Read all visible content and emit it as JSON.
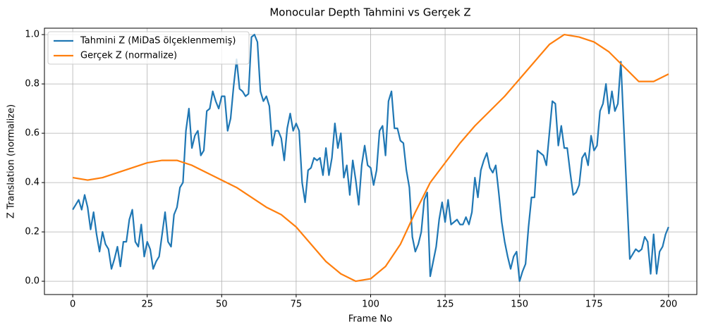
{
  "chart_data": {
    "type": "line",
    "title": "Monocular Depth Tahmini vs Gerçek Z",
    "xlabel": "Frame No",
    "ylabel": "Z Translation (normalize)",
    "xlim": [
      -9.5,
      209.5
    ],
    "ylim": [
      -0.054,
      1.026
    ],
    "xticks": [
      0,
      25,
      50,
      75,
      100,
      125,
      150,
      175,
      200
    ],
    "yticks": [
      {
        "value": 0,
        "label": "0.0"
      },
      {
        "value": 0.2,
        "label": "0.2"
      },
      {
        "value": 0.4,
        "label": "0.4"
      },
      {
        "value": 0.6,
        "label": "0.6"
      },
      {
        "value": 0.8,
        "label": "0.8"
      },
      {
        "value": 1,
        "label": "1.0"
      }
    ],
    "grid": true,
    "legend": "upper-left",
    "series": [
      {
        "name": "Tahmini Z (MiDaS ölçeklenmemiş)",
        "color": "#1f77b4",
        "x": [
          0,
          1,
          2,
          3,
          4,
          5,
          6,
          7,
          8,
          9,
          10,
          11,
          12,
          13,
          14,
          15,
          16,
          17,
          18,
          19,
          20,
          21,
          22,
          23,
          24,
          25,
          26,
          27,
          28,
          29,
          30,
          31,
          32,
          33,
          34,
          35,
          36,
          37,
          38,
          39,
          40,
          41,
          42,
          43,
          44,
          45,
          46,
          47,
          48,
          49,
          50,
          51,
          52,
          53,
          54,
          55,
          56,
          57,
          58,
          59,
          60,
          61,
          62,
          63,
          64,
          65,
          66,
          67,
          68,
          69,
          70,
          71,
          72,
          73,
          74,
          75,
          76,
          77,
          78,
          79,
          80,
          81,
          82,
          83,
          84,
          85,
          86,
          87,
          88,
          89,
          90,
          91,
          92,
          93,
          94,
          95,
          96,
          97,
          98,
          99,
          100,
          101,
          102,
          103,
          104,
          105,
          106,
          107,
          108,
          109,
          110,
          111,
          112,
          113,
          114,
          115,
          116,
          117,
          118,
          119,
          120,
          121,
          122,
          123,
          124,
          125,
          126,
          127,
          128,
          129,
          130,
          131,
          132,
          133,
          134,
          135,
          136,
          137,
          138,
          139,
          140,
          141,
          142,
          143,
          144,
          145,
          146,
          147,
          148,
          149,
          150,
          151,
          152,
          153,
          154,
          155,
          156,
          157,
          158,
          159,
          160,
          161,
          162,
          163,
          164,
          165,
          166,
          167,
          168,
          169,
          170,
          171,
          172,
          173,
          174,
          175,
          176,
          177,
          178,
          179,
          180,
          181,
          182,
          183,
          184,
          185,
          186,
          187,
          188,
          189,
          190,
          191,
          192,
          193,
          194,
          195,
          196,
          197,
          198,
          199,
          200
        ],
        "values": [
          0.29,
          0.31,
          0.33,
          0.29,
          0.35,
          0.3,
          0.21,
          0.28,
          0.19,
          0.12,
          0.2,
          0.15,
          0.13,
          0.05,
          0.09,
          0.14,
          0.06,
          0.16,
          0.16,
          0.25,
          0.29,
          0.16,
          0.14,
          0.23,
          0.1,
          0.16,
          0.13,
          0.05,
          0.08,
          0.1,
          0.19,
          0.28,
          0.16,
          0.14,
          0.27,
          0.3,
          0.38,
          0.4,
          0.61,
          0.7,
          0.54,
          0.59,
          0.61,
          0.51,
          0.53,
          0.69,
          0.7,
          0.77,
          0.73,
          0.7,
          0.75,
          0.75,
          0.61,
          0.66,
          0.79,
          0.9,
          0.78,
          0.77,
          0.75,
          0.76,
          0.99,
          1.0,
          0.97,
          0.77,
          0.73,
          0.75,
          0.71,
          0.55,
          0.61,
          0.61,
          0.58,
          0.49,
          0.62,
          0.68,
          0.61,
          0.64,
          0.61,
          0.4,
          0.32,
          0.45,
          0.46,
          0.5,
          0.49,
          0.5,
          0.43,
          0.54,
          0.43,
          0.5,
          0.64,
          0.54,
          0.6,
          0.42,
          0.47,
          0.35,
          0.49,
          0.41,
          0.31,
          0.47,
          0.55,
          0.47,
          0.46,
          0.39,
          0.45,
          0.61,
          0.63,
          0.51,
          0.73,
          0.77,
          0.62,
          0.62,
          0.57,
          0.56,
          0.45,
          0.38,
          0.18,
          0.12,
          0.15,
          0.2,
          0.33,
          0.36,
          0.02,
          0.08,
          0.14,
          0.25,
          0.32,
          0.24,
          0.33,
          0.23,
          0.24,
          0.25,
          0.23,
          0.23,
          0.26,
          0.23,
          0.28,
          0.42,
          0.34,
          0.45,
          0.49,
          0.52,
          0.46,
          0.44,
          0.47,
          0.36,
          0.24,
          0.16,
          0.1,
          0.05,
          0.1,
          0.12,
          0.0,
          0.04,
          0.07,
          0.22,
          0.34,
          0.34,
          0.53,
          0.52,
          0.51,
          0.47,
          0.6,
          0.73,
          0.72,
          0.55,
          0.63,
          0.54,
          0.54,
          0.44,
          0.35,
          0.36,
          0.39,
          0.5,
          0.52,
          0.47,
          0.59,
          0.53,
          0.55,
          0.69,
          0.72,
          0.8,
          0.68,
          0.77,
          0.69,
          0.72,
          0.89,
          0.62,
          0.35,
          0.09,
          0.11,
          0.13,
          0.12,
          0.13,
          0.18,
          0.16,
          0.03,
          0.19,
          0.03,
          0.12,
          0.14,
          0.19,
          0.22
        ]
      },
      {
        "name": "Gerçek Z (normalize)",
        "color": "#ff7f0e",
        "x": [
          0,
          5,
          10,
          15,
          20,
          25,
          30,
          35,
          40,
          45,
          50,
          55,
          60,
          65,
          70,
          75,
          80,
          85,
          90,
          95,
          100,
          105,
          110,
          115,
          120,
          125,
          130,
          135,
          140,
          145,
          150,
          155,
          160,
          165,
          170,
          175,
          180,
          185,
          190,
          195,
          200
        ],
        "values": [
          0.42,
          0.41,
          0.42,
          0.44,
          0.46,
          0.48,
          0.49,
          0.49,
          0.47,
          0.44,
          0.41,
          0.38,
          0.34,
          0.3,
          0.27,
          0.22,
          0.15,
          0.08,
          0.03,
          0.0,
          0.01,
          0.06,
          0.15,
          0.28,
          0.4,
          0.48,
          0.56,
          0.63,
          0.69,
          0.75,
          0.82,
          0.89,
          0.96,
          1.0,
          0.99,
          0.97,
          0.93,
          0.87,
          0.81,
          0.81,
          0.84
        ]
      }
    ]
  }
}
